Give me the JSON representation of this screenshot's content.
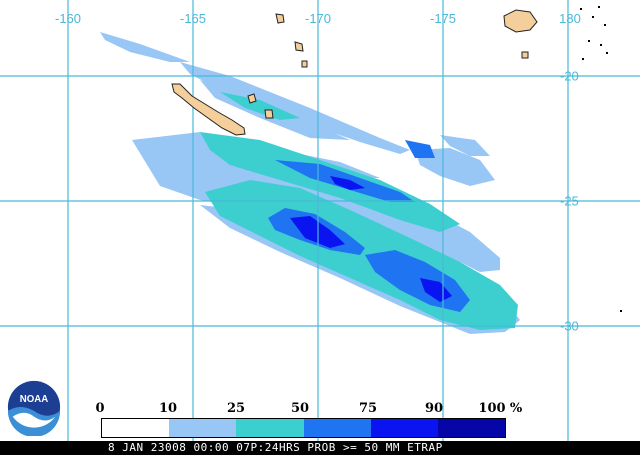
{
  "map": {
    "longitude_labels": [
      "-160",
      "-165",
      "-170",
      "-175",
      "180"
    ],
    "latitude_labels": [
      "-20",
      "-25",
      "-30"
    ],
    "colors": {
      "grid": "#49b9d8",
      "land": "#f5cf9b",
      "class_10_25": "#98c6f5",
      "class_25_50": "#3dcfd0",
      "class_50_75": "#1f74f2",
      "class_75_90": "#0a14f0",
      "class_90_100": "#0606a8"
    }
  },
  "legend": {
    "scale_labels": [
      "0",
      "10",
      "25",
      "50",
      "75",
      "90",
      "100"
    ],
    "unit": "%",
    "colors": [
      "#ffffff",
      "#98c6f5",
      "#3dcfd0",
      "#1f74f2",
      "#0a14f0",
      "#0606a8"
    ]
  },
  "caption": "8 JAN 23008 00:00 07P:24HRS PROB >= 50 MM ETRAP",
  "logo": {
    "text": "NOAA"
  }
}
